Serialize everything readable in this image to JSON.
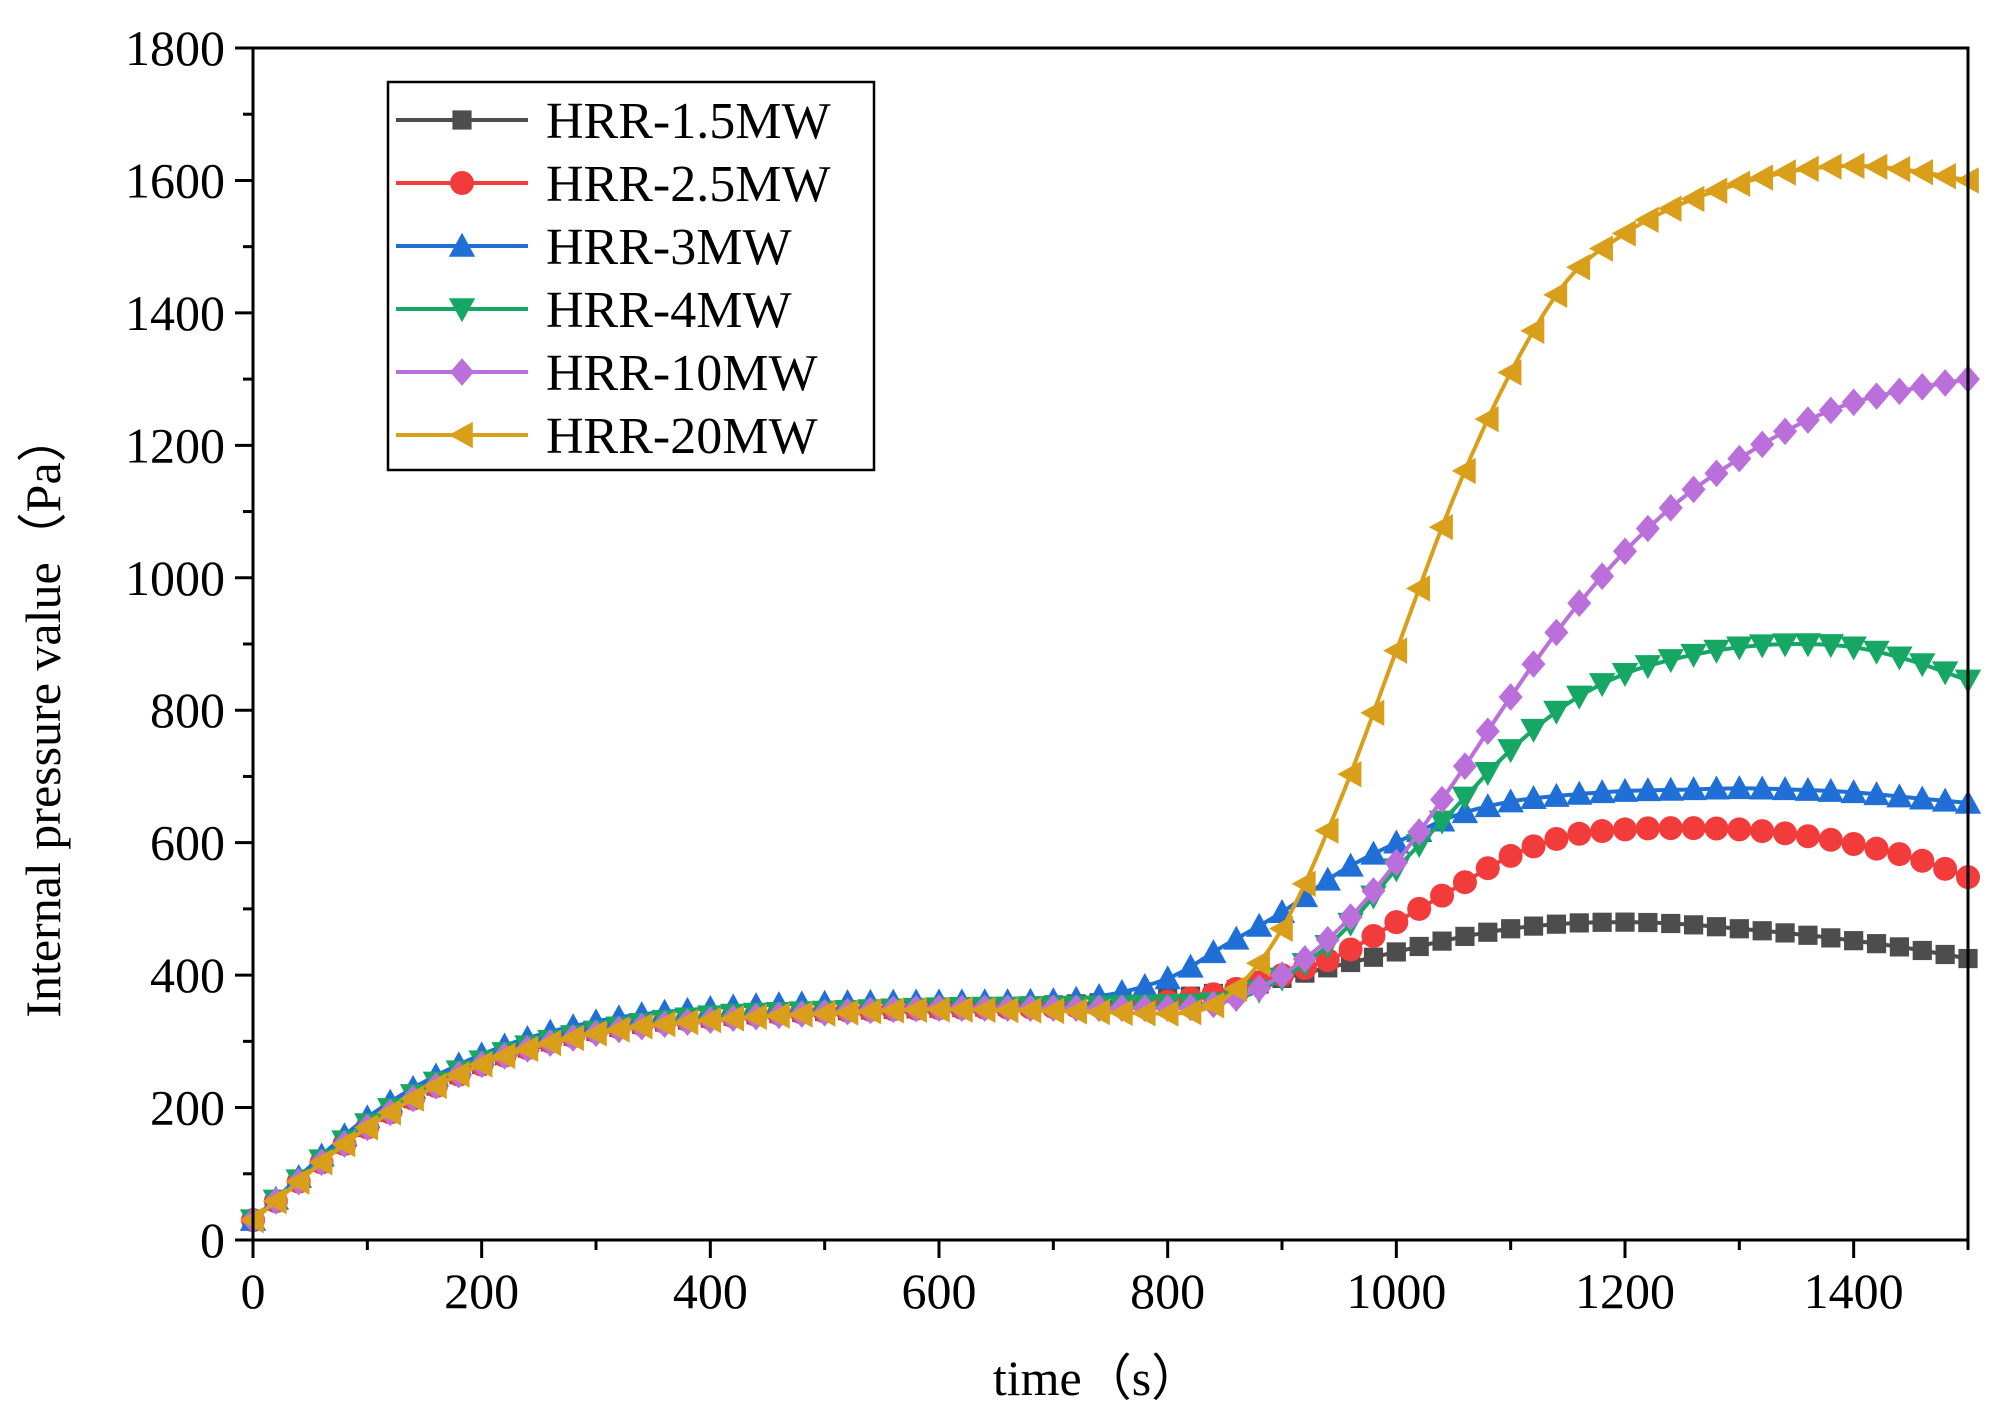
{
  "chart_data": {
    "type": "line",
    "title": "",
    "xlabel": "time（s）",
    "ylabel": "Internal pressure value（Pa）",
    "xlim": [
      0,
      1500
    ],
    "ylim": [
      0,
      1800
    ],
    "x_ticks": [
      0,
      200,
      400,
      600,
      800,
      1000,
      1200,
      1400
    ],
    "y_ticks": [
      0,
      200,
      400,
      600,
      800,
      1000,
      1200,
      1400,
      1600,
      1800
    ],
    "grid": false,
    "legend_position": "top-left",
    "x": [
      0,
      100,
      200,
      300,
      400,
      500,
      600,
      700,
      800,
      850,
      900,
      950,
      1000,
      1050,
      1100,
      1150,
      1200,
      1250,
      1300,
      1350,
      1400,
      1450,
      1500
    ],
    "series": [
      {
        "name": "HRR-1.5MW",
        "color": "#4d4d4d",
        "marker": "square",
        "values": [
          30,
          170,
          265,
          315,
          335,
          345,
          350,
          355,
          365,
          375,
          395,
          415,
          435,
          455,
          470,
          478,
          480,
          477,
          470,
          462,
          452,
          440,
          425
        ]
      },
      {
        "name": "HRR-2.5MW",
        "color": "#f23c3c",
        "marker": "circle",
        "values": [
          30,
          170,
          265,
          315,
          335,
          345,
          350,
          352,
          360,
          375,
          400,
          430,
          480,
          530,
          580,
          610,
          620,
          622,
          620,
          612,
          598,
          578,
          548
        ]
      },
      {
        "name": "HRR-3MW",
        "color": "#1f6fd6",
        "marker": "triangle-up",
        "values": [
          30,
          185,
          280,
          330,
          350,
          358,
          360,
          362,
          395,
          445,
          495,
          555,
          600,
          640,
          662,
          672,
          678,
          680,
          682,
          680,
          676,
          668,
          660
        ]
      },
      {
        "name": "HRR-4MW",
        "color": "#16a765",
        "marker": "triangle-down",
        "values": [
          30,
          175,
          270,
          315,
          338,
          345,
          350,
          352,
          355,
          360,
          395,
          460,
          560,
          650,
          740,
          810,
          855,
          880,
          895,
          900,
          895,
          875,
          845
        ]
      },
      {
        "name": "HRR-10MW",
        "color": "#bb6fdb",
        "marker": "diamond",
        "values": [
          30,
          170,
          265,
          312,
          332,
          343,
          350,
          350,
          350,
          360,
          400,
          470,
          570,
          690,
          820,
          940,
          1040,
          1120,
          1180,
          1230,
          1265,
          1285,
          1300
        ]
      },
      {
        "name": "HRR-20MW",
        "color": "#d99f1a",
        "marker": "triangle-left",
        "values": [
          30,
          170,
          265,
          312,
          332,
          342,
          348,
          346,
          342,
          365,
          470,
          660,
          890,
          1120,
          1310,
          1450,
          1520,
          1565,
          1595,
          1615,
          1622,
          1615,
          1600
        ]
      }
    ]
  }
}
